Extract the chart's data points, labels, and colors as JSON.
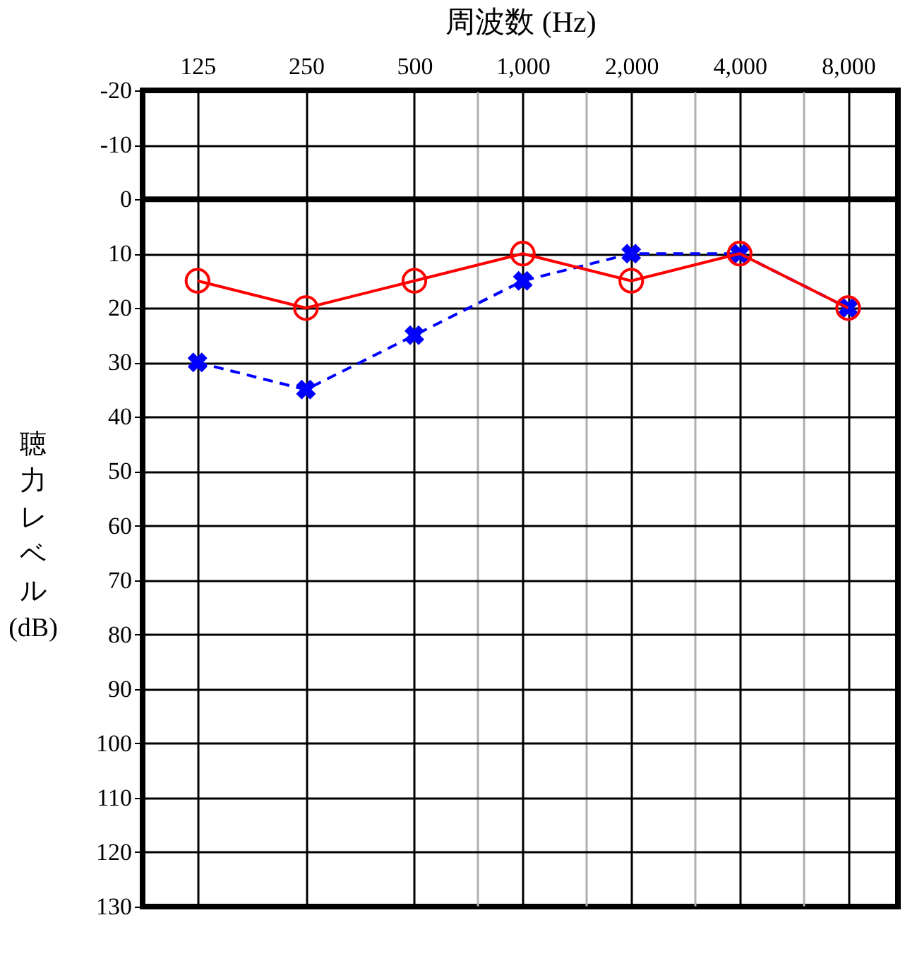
{
  "chart_data": {
    "type": "line",
    "xlabel": "周波数 (Hz)",
    "ylabel": "聴力レベル(dB)",
    "x": [
      125,
      250,
      500,
      1000,
      2000,
      4000,
      8000
    ],
    "series": [
      {
        "color": "#0000ff",
        "values": [
          30,
          35,
          25,
          15,
          10,
          10,
          20
        ],
        "marker": "cross",
        "line_style": "dashed"
      },
      {
        "color": "#ff0000",
        "values": [
          15,
          20,
          15,
          10,
          15,
          10,
          20
        ],
        "marker": "circle",
        "line_style": "solid"
      }
    ],
    "log": "x",
    "xlim": [
      88,
      11000
    ],
    "xticks": [
      125,
      250,
      500,
      {
        "value": 750,
        "label": null
      },
      {
        "value": 1000,
        "label": "1,000"
      },
      {
        "value": 1500,
        "label": null
      },
      {
        "value": 2000,
        "label": "2,000"
      },
      {
        "value": 3000,
        "label": null
      },
      {
        "value": 4000,
        "label": "4,000"
      },
      {
        "value": 6000,
        "label": null
      },
      {
        "value": 8000,
        "label": "8,000"
      }
    ],
    "ylim": [
      130,
      -20
    ],
    "yticks": [
      -20,
      -10,
      0,
      10,
      20,
      30,
      40,
      50,
      60,
      70,
      80,
      90,
      100,
      110,
      120,
      130
    ],
    "ref_lines": [
      {
        "axis": "y",
        "value": 0
      }
    ],
    "grid": true,
    "legend": false
  }
}
